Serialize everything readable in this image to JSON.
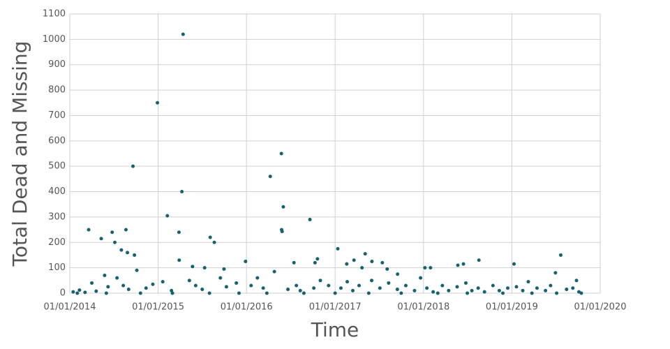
{
  "chart_data": {
    "type": "scatter",
    "x_label": "Time",
    "y_label": "Total Dead and Missing",
    "color": "#17606f",
    "grid": true,
    "xlim": [
      "2014-01-01",
      "2020-01-01"
    ],
    "xticks": [
      {
        "value": "2014-01-01",
        "label": "01/01/2014"
      },
      {
        "value": "2015-01-01",
        "label": "01/01/2015"
      },
      {
        "value": "2016-01-01",
        "label": "01/01/2016"
      },
      {
        "value": "2017-01-01",
        "label": "01/01/2017"
      },
      {
        "value": "2018-01-01",
        "label": "01/01/2018"
      },
      {
        "value": "2019-01-01",
        "label": "01/01/2019"
      },
      {
        "value": "2020-01-01",
        "label": "01/01/2020"
      }
    ],
    "ylim": [
      0,
      1100
    ],
    "yticks": [
      0,
      100,
      200,
      300,
      400,
      500,
      600,
      700,
      800,
      900,
      1000,
      1100
    ],
    "x": [
      "2014-03-20",
      "2014-05-11",
      "2014-06-25",
      "2014-07-06",
      "2014-08-21",
      "2014-09-19",
      "2014-08-02",
      "2014-08-27",
      "2014-09-25",
      "2014-12-29",
      "2015-04-14",
      "2015-04-09",
      "2015-02-08",
      "2015-03-28",
      "2015-03-29",
      "2015-05-23",
      "2015-08-04",
      "2015-08-21",
      "2015-07-12",
      "2015-09-30",
      "2015-12-28",
      "2016-04-08",
      "2016-05-24",
      "2016-06-01",
      "2016-05-25",
      "2016-05-27",
      "2016-09-19",
      "2016-07-15",
      "2016-10-20",
      "2016-10-10",
      "2017-01-12",
      "2017-02-18",
      "2017-03-20",
      "2017-05-05",
      "2017-06-02",
      "2017-04-22",
      "2017-07-15",
      "2017-08-04",
      "2017-09-16",
      "2018-01-07",
      "2018-01-30",
      "2018-05-23",
      "2018-06-15",
      "2018-08-18",
      "2019-01-10",
      "2019-07-22",
      "2019-06-30",
      "2019-09-25",
      "2014-01-15",
      "2014-02-10",
      "2014-03-05",
      "2014-04-02",
      "2014-04-20",
      "2014-05-25",
      "2014-06-08",
      "2014-07-15",
      "2014-08-10",
      "2014-09-01",
      "2014-10-05",
      "2014-11-12",
      "2014-12-10",
      "2015-01-20",
      "2015-02-25",
      "2015-05-10",
      "2015-06-05",
      "2015-07-02",
      "2015-09-15",
      "2015-10-10",
      "2015-11-20",
      "2016-01-20",
      "2016-02-15",
      "2016-03-10",
      "2016-04-25",
      "2016-06-20",
      "2016-07-25",
      "2016-08-10",
      "2016-10-05",
      "2016-11-01",
      "2016-12-05",
      "2017-01-25",
      "2017-02-20",
      "2017-03-15",
      "2017-04-10",
      "2017-06-01",
      "2017-07-05",
      "2017-08-10",
      "2017-09-15",
      "2017-10-20",
      "2017-11-25",
      "2017-12-20",
      "2018-01-15",
      "2018-02-10",
      "2018-03-20",
      "2018-04-15",
      "2018-05-20",
      "2018-06-25",
      "2018-07-20",
      "2018-08-15",
      "2018-09-10",
      "2018-10-15",
      "2018-11-10",
      "2018-12-15",
      "2019-01-20",
      "2019-02-15",
      "2019-03-10",
      "2019-04-15",
      "2019-05-20",
      "2019-06-10",
      "2019-08-15",
      "2019-09-10",
      "2019-10-05",
      "2014-02-01",
      "2014-06-01",
      "2014-10-20",
      "2015-03-01",
      "2015-08-01",
      "2015-12-01",
      "2016-03-25",
      "2016-08-25",
      "2017-01-01",
      "2017-05-20",
      "2017-10-01",
      "2018-03-01",
      "2018-07-01",
      "2018-11-25",
      "2019-03-25",
      "2019-07-05",
      "2019-10-15"
    ],
    "values": [
      250,
      215,
      240,
      200,
      250,
      500,
      170,
      160,
      150,
      750,
      1020,
      400,
      305,
      240,
      130,
      105,
      220,
      200,
      100,
      95,
      125,
      460,
      550,
      340,
      250,
      243,
      290,
      120,
      135,
      120,
      175,
      115,
      130,
      155,
      125,
      100,
      120,
      95,
      75,
      100,
      100,
      110,
      115,
      130,
      115,
      150,
      80,
      50,
      5,
      12,
      3,
      40,
      8,
      70,
      25,
      60,
      30,
      15,
      90,
      20,
      35,
      45,
      10,
      50,
      30,
      15,
      60,
      25,
      40,
      30,
      60,
      20,
      85,
      15,
      30,
      10,
      20,
      50,
      30,
      20,
      45,
      10,
      30,
      50,
      20,
      40,
      15,
      30,
      10,
      60,
      20,
      5,
      30,
      10,
      25,
      40,
      10,
      20,
      5,
      30,
      10,
      20,
      25,
      10,
      45,
      20,
      10,
      30,
      15,
      20,
      5,
      0,
      0,
      0,
      0,
      0,
      0,
      0,
      0,
      0,
      0,
      0,
      0,
      0,
      0,
      0,
      0,
      0
    ]
  }
}
